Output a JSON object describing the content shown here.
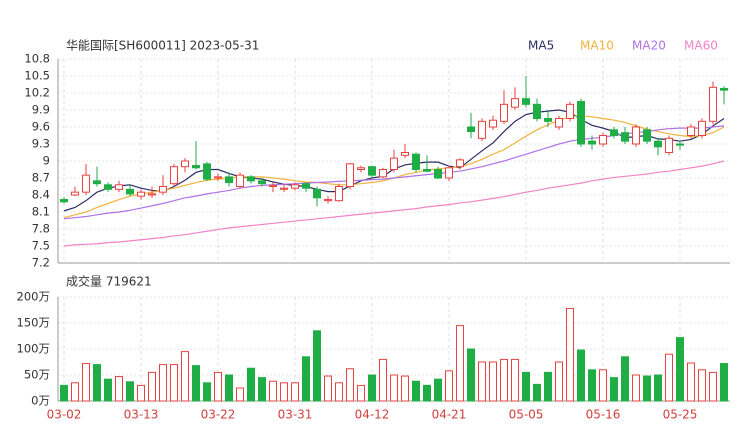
{
  "chart_data": [
    {
      "type": "candlestick",
      "title": "华能国际[SH600011] 2023-05-31",
      "categories": [
        "03-02",
        null,
        null,
        null,
        null,
        null,
        null,
        "03-13",
        null,
        null,
        null,
        null,
        null,
        null,
        "03-22",
        null,
        null,
        null,
        null,
        null,
        null,
        "03-31",
        null,
        null,
        null,
        null,
        null,
        null,
        "04-12",
        null,
        null,
        null,
        null,
        null,
        null,
        "04-21",
        null,
        null,
        null,
        null,
        null,
        null,
        "05-05",
        null,
        null,
        null,
        null,
        null,
        null,
        "05-16",
        null,
        null,
        null,
        null,
        null,
        null,
        "05-25",
        null,
        null,
        null,
        null
      ],
      "open": [
        8.32,
        8.4,
        8.45,
        8.65,
        8.58,
        8.5,
        8.5,
        8.38,
        8.4,
        8.45,
        8.6,
        8.9,
        8.92,
        8.95,
        8.7,
        8.72,
        8.55,
        8.72,
        8.65,
        8.55,
        8.5,
        8.52,
        8.6,
        8.5,
        8.3,
        8.3,
        8.55,
        8.85,
        8.9,
        8.72,
        8.85,
        9.1,
        9.12,
        8.85,
        8.85,
        8.7,
        8.9,
        9.6,
        9.4,
        9.6,
        9.7,
        9.95,
        10.1,
        10.0,
        9.75,
        9.6,
        9.75,
        10.05,
        9.35,
        9.3,
        9.55,
        9.5,
        9.3,
        9.55,
        9.35,
        9.15,
        9.3,
        9.45,
        9.45,
        9.7,
        10.28
      ],
      "close": [
        8.28,
        8.45,
        8.75,
        8.6,
        8.5,
        8.58,
        8.42,
        8.45,
        8.42,
        8.55,
        8.9,
        9.0,
        8.88,
        8.68,
        8.72,
        8.62,
        8.75,
        8.65,
        8.6,
        8.57,
        8.52,
        8.58,
        8.52,
        8.35,
        8.32,
        8.55,
        8.95,
        8.88,
        8.75,
        8.85,
        9.05,
        9.15,
        8.85,
        8.82,
        8.7,
        8.88,
        9.02,
        9.52,
        9.7,
        9.72,
        10.0,
        10.1,
        10.0,
        9.75,
        9.7,
        9.75,
        10.0,
        9.3,
        9.3,
        9.45,
        9.45,
        9.35,
        9.6,
        9.35,
        9.25,
        9.4,
        9.28,
        9.6,
        9.7,
        10.3,
        10.25
      ],
      "high": [
        8.36,
        8.55,
        8.95,
        8.9,
        8.62,
        8.65,
        8.58,
        8.5,
        8.55,
        8.75,
        8.95,
        9.05,
        9.35,
        8.98,
        8.78,
        8.8,
        8.8,
        8.75,
        8.7,
        8.62,
        8.6,
        8.62,
        8.62,
        8.55,
        8.38,
        8.6,
        8.97,
        8.92,
        8.92,
        8.88,
        9.2,
        9.3,
        9.15,
        9.1,
        8.9,
        8.92,
        9.05,
        9.85,
        9.75,
        9.8,
        10.25,
        10.3,
        10.5,
        10.1,
        9.9,
        9.8,
        10.05,
        10.1,
        9.45,
        9.5,
        9.6,
        9.6,
        9.65,
        9.6,
        9.4,
        9.45,
        9.35,
        9.65,
        9.75,
        10.4,
        10.32
      ],
      "low": [
        8.25,
        8.38,
        8.4,
        8.55,
        8.45,
        8.45,
        8.38,
        8.32,
        8.35,
        8.4,
        8.55,
        8.8,
        8.85,
        8.65,
        8.65,
        8.55,
        8.52,
        8.6,
        8.55,
        8.45,
        8.45,
        8.48,
        8.45,
        8.2,
        8.25,
        8.28,
        8.5,
        8.8,
        8.7,
        8.7,
        8.8,
        9.05,
        8.8,
        8.8,
        8.68,
        8.65,
        8.85,
        9.4,
        9.35,
        9.55,
        9.65,
        9.9,
        9.95,
        9.7,
        9.6,
        9.55,
        9.7,
        9.25,
        9.2,
        9.25,
        9.4,
        9.3,
        9.25,
        9.3,
        9.1,
        9.1,
        9.2,
        9.4,
        9.4,
        9.65,
        10.0
      ],
      "up_color": "#e8423f",
      "down_color": "#1fae46",
      "series": [
        {
          "name": "MA5",
          "color": "#2c2c66",
          "values": [
            8.12,
            8.18,
            8.3,
            8.45,
            8.52,
            8.56,
            8.58,
            8.52,
            8.48,
            8.46,
            8.55,
            8.66,
            8.8,
            8.85,
            8.85,
            8.78,
            8.72,
            8.7,
            8.68,
            8.63,
            8.59,
            8.57,
            8.55,
            8.5,
            8.46,
            8.46,
            8.56,
            8.65,
            8.7,
            8.73,
            8.86,
            8.93,
            8.96,
            8.98,
            8.98,
            8.91,
            8.88,
            9.03,
            9.18,
            9.32,
            9.52,
            9.7,
            9.82,
            9.86,
            9.88,
            9.9,
            9.86,
            9.73,
            9.63,
            9.58,
            9.52,
            9.41,
            9.43,
            9.45,
            9.39,
            9.38,
            9.35,
            9.38,
            9.47,
            9.62,
            9.75
          ]
        },
        {
          "name": "MA10",
          "color": "#f2b33d",
          "values": [
            8.0,
            8.05,
            8.1,
            8.18,
            8.25,
            8.32,
            8.38,
            8.42,
            8.45,
            8.48,
            8.52,
            8.57,
            8.62,
            8.66,
            8.68,
            8.7,
            8.72,
            8.72,
            8.72,
            8.7,
            8.68,
            8.65,
            8.63,
            8.62,
            8.6,
            8.58,
            8.58,
            8.6,
            8.62,
            8.65,
            8.7,
            8.76,
            8.8,
            8.84,
            8.86,
            8.88,
            8.9,
            8.95,
            9.03,
            9.12,
            9.2,
            9.32,
            9.44,
            9.55,
            9.64,
            9.72,
            9.78,
            9.8,
            9.78,
            9.75,
            9.72,
            9.68,
            9.62,
            9.56,
            9.52,
            9.48,
            9.45,
            9.43,
            9.45,
            9.5,
            9.6
          ]
        },
        {
          "name": "MA20",
          "color": "#b072e6",
          "values": [
            7.98,
            8.0,
            8.02,
            8.05,
            8.08,
            8.1,
            8.13,
            8.17,
            8.21,
            8.25,
            8.3,
            8.35,
            8.38,
            8.42,
            8.45,
            8.48,
            8.52,
            8.55,
            8.57,
            8.58,
            8.59,
            8.6,
            8.61,
            8.62,
            8.63,
            8.64,
            8.65,
            8.66,
            8.67,
            8.68,
            8.7,
            8.72,
            8.74,
            8.76,
            8.78,
            8.8,
            8.82,
            8.86,
            8.9,
            8.95,
            9.0,
            9.06,
            9.12,
            9.18,
            9.24,
            9.3,
            9.35,
            9.38,
            9.4,
            9.42,
            9.45,
            9.48,
            9.5,
            9.52,
            9.55,
            9.57,
            9.58,
            9.58,
            9.58,
            9.6,
            9.62
          ]
        },
        {
          "name": "MA60",
          "color": "#f283c8",
          "values": [
            7.5,
            7.52,
            7.53,
            7.54,
            7.56,
            7.57,
            7.59,
            7.61,
            7.63,
            7.65,
            7.68,
            7.7,
            7.73,
            7.76,
            7.79,
            7.82,
            7.84,
            7.86,
            7.88,
            7.9,
            7.92,
            7.94,
            7.96,
            7.98,
            8.0,
            8.02,
            8.04,
            8.06,
            8.08,
            8.1,
            8.12,
            8.14,
            8.16,
            8.19,
            8.21,
            8.23,
            8.26,
            8.28,
            8.31,
            8.34,
            8.37,
            8.41,
            8.45,
            8.48,
            8.52,
            8.55,
            8.58,
            8.61,
            8.65,
            8.68,
            8.71,
            8.73,
            8.75,
            8.77,
            8.8,
            8.82,
            8.85,
            8.88,
            8.91,
            8.95,
            9.0
          ]
        }
      ],
      "ylim": [
        7.2,
        10.8
      ],
      "yticks": [
        7.2,
        7.5,
        7.8,
        8.1,
        8.4,
        8.7,
        9,
        9.3,
        9.6,
        9.9,
        10.2,
        10.5,
        10.8
      ],
      "grid": true
    },
    {
      "type": "bar",
      "title": "成交量 719621",
      "values": [
        30,
        35,
        72,
        70,
        42,
        47,
        37,
        30,
        55,
        70,
        70,
        95,
        68,
        35,
        55,
        50,
        25,
        63,
        45,
        38,
        35,
        35,
        85,
        135,
        48,
        35,
        62,
        30,
        50,
        80,
        50,
        48,
        38,
        30,
        42,
        58,
        145,
        100,
        75,
        75,
        80,
        80,
        55,
        32,
        55,
        75,
        178,
        98,
        60,
        60,
        45,
        85,
        50,
        48,
        50,
        90,
        122,
        73,
        60,
        55,
        72
      ],
      "ylim": [
        0,
        200
      ],
      "yticks": [
        {
          "value": 0,
          "label": "0万"
        },
        {
          "value": 50,
          "label": "50万"
        },
        {
          "value": 100,
          "label": "100万"
        },
        {
          "value": 150,
          "label": "150万"
        },
        {
          "value": 200,
          "label": "200万"
        }
      ],
      "grid": true
    }
  ]
}
